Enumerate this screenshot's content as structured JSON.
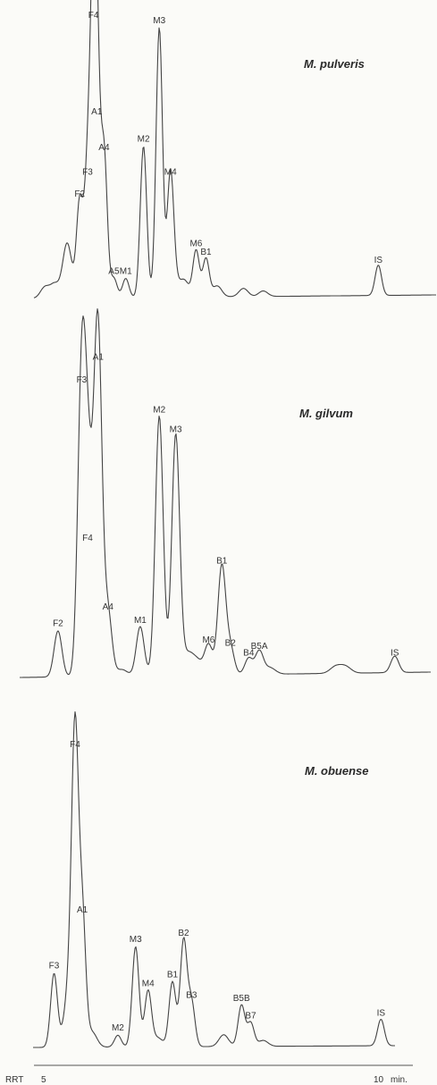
{
  "chart_data": [
    {
      "type": "line",
      "title": "M. pulveris",
      "peaks": [
        {
          "label": "F2",
          "x": 5.41,
          "y": 0.35
        },
        {
          "label": "F3",
          "x": 5.53,
          "y": 0.43
        },
        {
          "label": "F4",
          "x": 5.62,
          "y": 1.0
        },
        {
          "label": "A1",
          "x": 5.67,
          "y": 0.65
        },
        {
          "label": "A4",
          "x": 5.78,
          "y": 0.52
        },
        {
          "label": "A5",
          "x": 5.93,
          "y": 0.07
        },
        {
          "label": "M1",
          "x": 6.11,
          "y": 0.07
        },
        {
          "label": "M2",
          "x": 6.38,
          "y": 0.55
        },
        {
          "label": "M3",
          "x": 6.62,
          "y": 0.98
        },
        {
          "label": "M4",
          "x": 6.79,
          "y": 0.43
        },
        {
          "label": "M6",
          "x": 7.18,
          "y": 0.17
        },
        {
          "label": "B1",
          "x": 7.33,
          "y": 0.14
        },
        {
          "label": "IS",
          "x": 9.95,
          "y": 0.11
        }
      ]
    },
    {
      "type": "line",
      "title": "M. gilvum",
      "peaks": [
        {
          "label": "F2",
          "x": 5.08,
          "y": 0.14
        },
        {
          "label": "F3",
          "x": 5.44,
          "y": 0.88
        },
        {
          "label": "F4",
          "x": 5.53,
          "y": 0.4
        },
        {
          "label": "A1",
          "x": 5.69,
          "y": 0.95
        },
        {
          "label": "A4",
          "x": 5.84,
          "y": 0.19
        },
        {
          "label": "M1",
          "x": 6.33,
          "y": 0.15
        },
        {
          "label": "M2",
          "x": 6.62,
          "y": 0.79
        },
        {
          "label": "M3",
          "x": 6.87,
          "y": 0.73
        },
        {
          "label": "M6",
          "x": 7.37,
          "y": 0.09
        },
        {
          "label": "B1",
          "x": 7.57,
          "y": 0.33
        },
        {
          "label": "B2",
          "x": 7.7,
          "y": 0.08
        },
        {
          "label": "B4",
          "x": 7.98,
          "y": 0.05
        },
        {
          "label": "B5A",
          "x": 8.14,
          "y": 0.07
        },
        {
          "label": "IS",
          "x": 10.2,
          "y": 0.05
        }
      ]
    },
    {
      "type": "line",
      "title": "M. obuense",
      "x_axis": {
        "label_left": "RRT",
        "ticks": [
          5,
          10
        ],
        "unit": "min."
      },
      "peaks": [
        {
          "label": "F3",
          "x": 5.02,
          "y": 0.25
        },
        {
          "label": "F4",
          "x": 5.34,
          "y": 1.0
        },
        {
          "label": "A1",
          "x": 5.45,
          "y": 0.44
        },
        {
          "label": "M2",
          "x": 5.99,
          "y": 0.04
        },
        {
          "label": "M3",
          "x": 6.26,
          "y": 0.34
        },
        {
          "label": "M4",
          "x": 6.45,
          "y": 0.19
        },
        {
          "label": "B1",
          "x": 6.82,
          "y": 0.22
        },
        {
          "label": "B2",
          "x": 6.99,
          "y": 0.36
        },
        {
          "label": "B3",
          "x": 7.11,
          "y": 0.15
        },
        {
          "label": "B5B",
          "x": 7.87,
          "y": 0.14
        },
        {
          "label": "B7",
          "x": 8.01,
          "y": 0.08
        },
        {
          "label": "IS",
          "x": 9.99,
          "y": 0.09
        }
      ]
    }
  ]
}
